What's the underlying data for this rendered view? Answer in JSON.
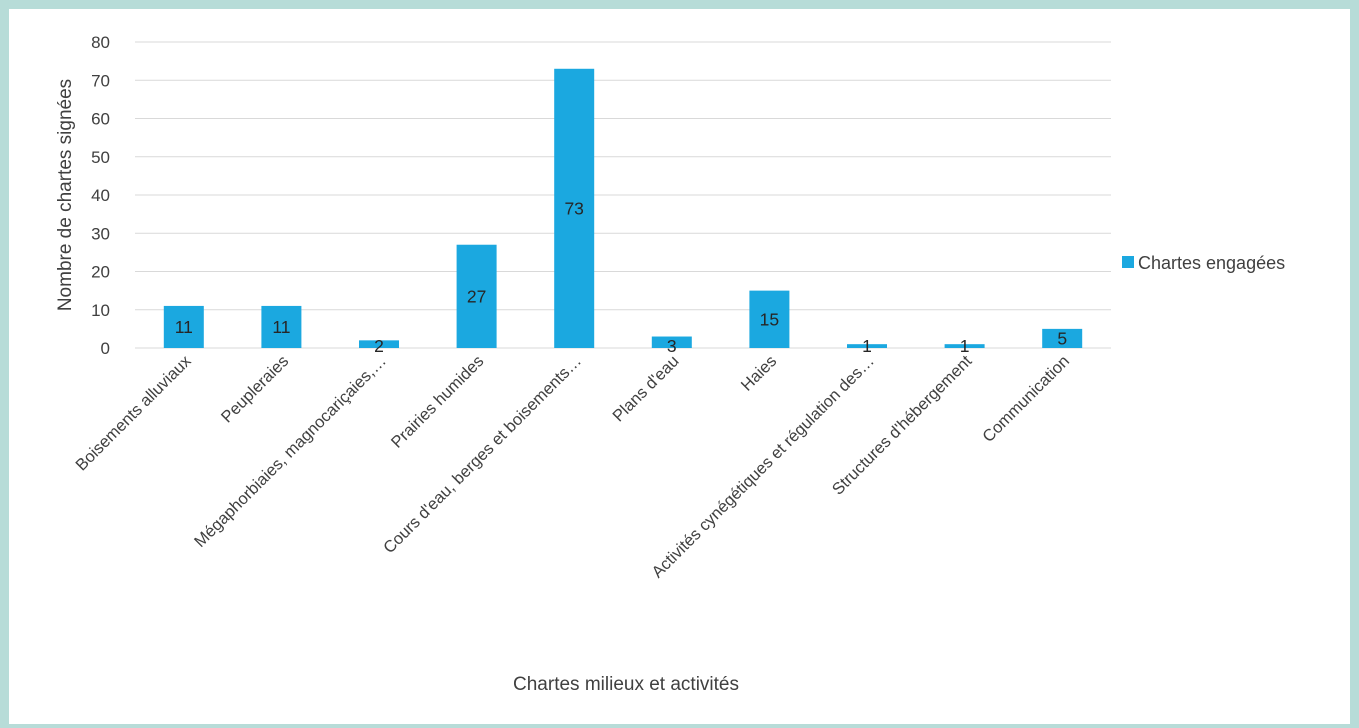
{
  "chart_data": {
    "type": "bar",
    "categories": [
      "Boisements alluviaux",
      "Peupleraies",
      "Mégaphorbiaies, magnocariçaies,…",
      "Prairies humides",
      "Cours d'eau, berges et boisements…",
      "Plans d'eau",
      "Haies",
      "Activités cynégétiques et régulation des…",
      "Structures d'hébergement",
      "Communication"
    ],
    "series": [
      {
        "name": "Chartes engagées",
        "values": [
          11,
          11,
          2,
          27,
          73,
          3,
          15,
          1,
          1,
          5
        ],
        "color": "#1ba8e0"
      }
    ],
    "xlabel": "Chartes milieux et activités",
    "ylabel": "Nombre de chartes signées",
    "ylim": [
      0,
      80
    ],
    "yticks": [
      0,
      10,
      20,
      30,
      40,
      50,
      60,
      70,
      80
    ],
    "grid": true,
    "legend_position": "right",
    "data_labels": true
  }
}
